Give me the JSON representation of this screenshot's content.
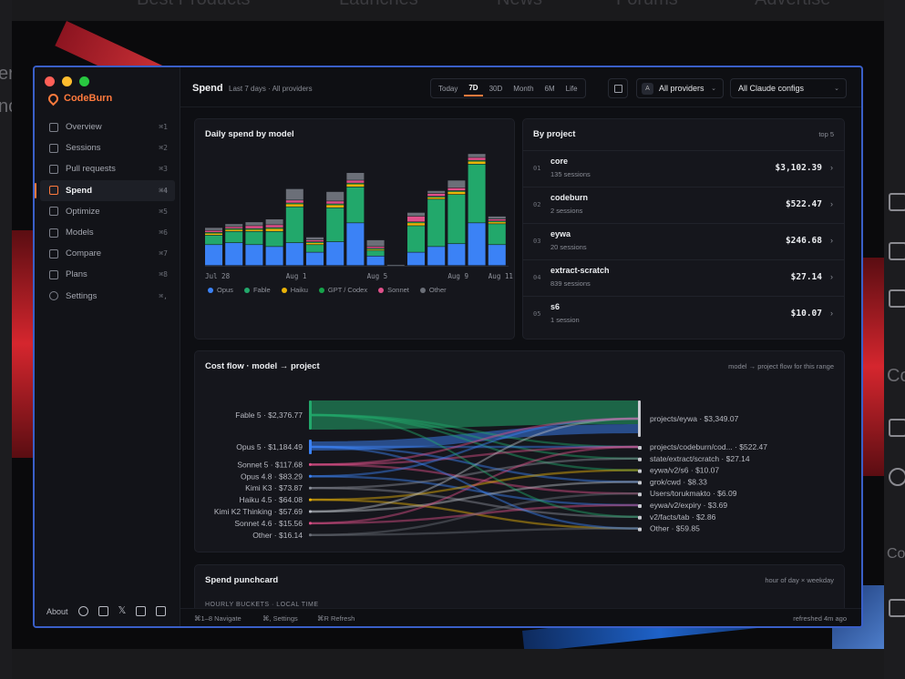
{
  "background": {
    "nav": [
      "Best Products",
      "Launches",
      "News",
      "Forums",
      "Advertise"
    ],
    "left_ghost": [
      "er",
      "nc"
    ],
    "right_ghost": [
      "Co",
      "Co"
    ]
  },
  "app": {
    "brand": "CodeBurn",
    "window_controls": {
      "close": "#ff5f57",
      "minimize": "#febc2e",
      "zoom": "#28c840"
    },
    "accent": "#ff7a3d"
  },
  "sidebar": {
    "items": [
      {
        "label": "Overview",
        "kbd": "⌘1",
        "icon": "grid-icon"
      },
      {
        "label": "Sessions",
        "kbd": "⌘2",
        "icon": "list-icon"
      },
      {
        "label": "Pull requests",
        "kbd": "⌘3",
        "icon": "git-pull-icon"
      },
      {
        "label": "Spend",
        "kbd": "⌘4",
        "icon": "bar-chart-icon",
        "active": true
      },
      {
        "label": "Optimize",
        "kbd": "⌘5",
        "icon": "search-icon"
      },
      {
        "label": "Models",
        "kbd": "⌘6",
        "icon": "cube-icon"
      },
      {
        "label": "Compare",
        "kbd": "⌘7",
        "icon": "swap-icon"
      },
      {
        "label": "Plans",
        "kbd": "⌘8",
        "icon": "card-icon"
      },
      {
        "label": "Settings",
        "kbd": "⌘,",
        "icon": "gear-icon"
      }
    ],
    "footer_about": "About",
    "footer_icons": [
      "github-icon",
      "discord-icon",
      "x-icon",
      "youtube-icon",
      "linkedin-icon"
    ]
  },
  "topbar": {
    "title": "Spend",
    "subtitle": "Last 7 days · All providers",
    "ranges": [
      "Today",
      "7D",
      "30D",
      "Month",
      "6M",
      "Life"
    ],
    "active_range": "7D",
    "provider_avatar": "A",
    "provider": "All providers",
    "config": "All Claude configs"
  },
  "daily_card": {
    "title": "Daily spend by model",
    "x_ticks": [
      "Jul 28",
      "Aug 1",
      "Aug 5",
      "Aug 9",
      "Aug 11"
    ]
  },
  "chart_data": {
    "type": "bar",
    "stacked": true,
    "title": "Daily spend by model",
    "x_tick_labels": [
      "Jul 28",
      "Aug 1",
      "Aug 5",
      "Aug 9",
      "Aug 11"
    ],
    "bars": 15,
    "series": [
      {
        "name": "Opus",
        "color": "#3b82f6",
        "values": [
          22,
          24,
          22,
          20,
          24,
          14,
          25,
          45,
          10,
          0,
          14,
          20,
          23,
          45,
          22
        ]
      },
      {
        "name": "Fable",
        "color": "#22a86b",
        "values": [
          10,
          12,
          14,
          16,
          38,
          8,
          36,
          38,
          6,
          0,
          28,
          50,
          52,
          62,
          22
        ]
      },
      {
        "name": "Haiku",
        "color": "#eab308",
        "values": [
          2,
          2,
          2,
          3,
          3,
          2,
          3,
          3,
          1,
          0,
          3,
          2,
          3,
          3,
          2
        ]
      },
      {
        "name": "GPT / Codex",
        "color": "#16a34a",
        "values": [
          1,
          1,
          1,
          1,
          1,
          1,
          1,
          1,
          1,
          0,
          1,
          1,
          1,
          1,
          1
        ]
      },
      {
        "name": "Sonnet",
        "color": "#e0508a",
        "values": [
          2,
          2,
          3,
          3,
          3,
          2,
          3,
          3,
          2,
          0,
          6,
          3,
          3,
          3,
          2
        ]
      },
      {
        "name": "Other",
        "color": "#6b6f78",
        "values": [
          3,
          3,
          4,
          6,
          12,
          3,
          10,
          8,
          7,
          1,
          4,
          3,
          8,
          4,
          3
        ]
      }
    ]
  },
  "project_card": {
    "title": "By project",
    "hint": "top 5",
    "rows": [
      {
        "idx": "01",
        "name": "core",
        "sessions": "135 sessions",
        "amount": "$3,102.39"
      },
      {
        "idx": "02",
        "name": "codeburn",
        "sessions": "2 sessions",
        "amount": "$522.47"
      },
      {
        "idx": "03",
        "name": "eywa",
        "sessions": "20 sessions",
        "amount": "$246.68"
      },
      {
        "idx": "04",
        "name": "extract-scratch",
        "sessions": "839 sessions",
        "amount": "$27.14"
      },
      {
        "idx": "05",
        "name": "s6",
        "sessions": "1 session",
        "amount": "$10.07"
      }
    ]
  },
  "flow_card": {
    "title": "Cost flow · model → project",
    "hint": "model → project flow for this range",
    "sources": [
      {
        "label": "Fable 5 · $2,376.77",
        "color": "#22a86b",
        "weight": 32
      },
      {
        "label": "Opus 5 · $1,184.49",
        "color": "#3b82f6",
        "weight": 16
      },
      {
        "label": "Sonnet 5 · $117.68",
        "color": "#e0508a",
        "weight": 3
      },
      {
        "label": "Opus 4.8 · $83.29",
        "color": "#3b82f6",
        "weight": 3
      },
      {
        "label": "Kimi K3 · $73.87",
        "color": "#8b8f98",
        "weight": 3
      },
      {
        "label": "Haiku 4.5 · $64.08",
        "color": "#eab308",
        "weight": 3
      },
      {
        "label": "Kimi K2 Thinking · $57.69",
        "color": "#b9bcc4",
        "weight": 3
      },
      {
        "label": "Sonnet 4.6 · $15.56",
        "color": "#e0508a",
        "weight": 3
      },
      {
        "label": "Other · $16.14",
        "color": "#6b6f78",
        "weight": 3
      }
    ],
    "targets": [
      "projects/eywa · $3,349.07",
      "projects/codeburn/cod... · $522.47",
      "state/extract/scratch · $27.14",
      "eywa/v2/s6 · $10.07",
      "grok/cwd · $8.33",
      "Users/torukmakto · $6.09",
      "eywa/v2/expiry · $3.69",
      "v2/facts/tab · $2.86",
      "Other · $59.85"
    ]
  },
  "punch_card": {
    "title": "Spend punchcard",
    "hint": "hour of day × weekday",
    "sub": "HOURLY BUCKETS · LOCAL TIME"
  },
  "statusbar": {
    "navigate": "⌘1–8  Navigate",
    "settings": "⌘,  Settings",
    "refresh": "⌘R  Refresh",
    "refreshed": "refreshed 4m ago"
  }
}
